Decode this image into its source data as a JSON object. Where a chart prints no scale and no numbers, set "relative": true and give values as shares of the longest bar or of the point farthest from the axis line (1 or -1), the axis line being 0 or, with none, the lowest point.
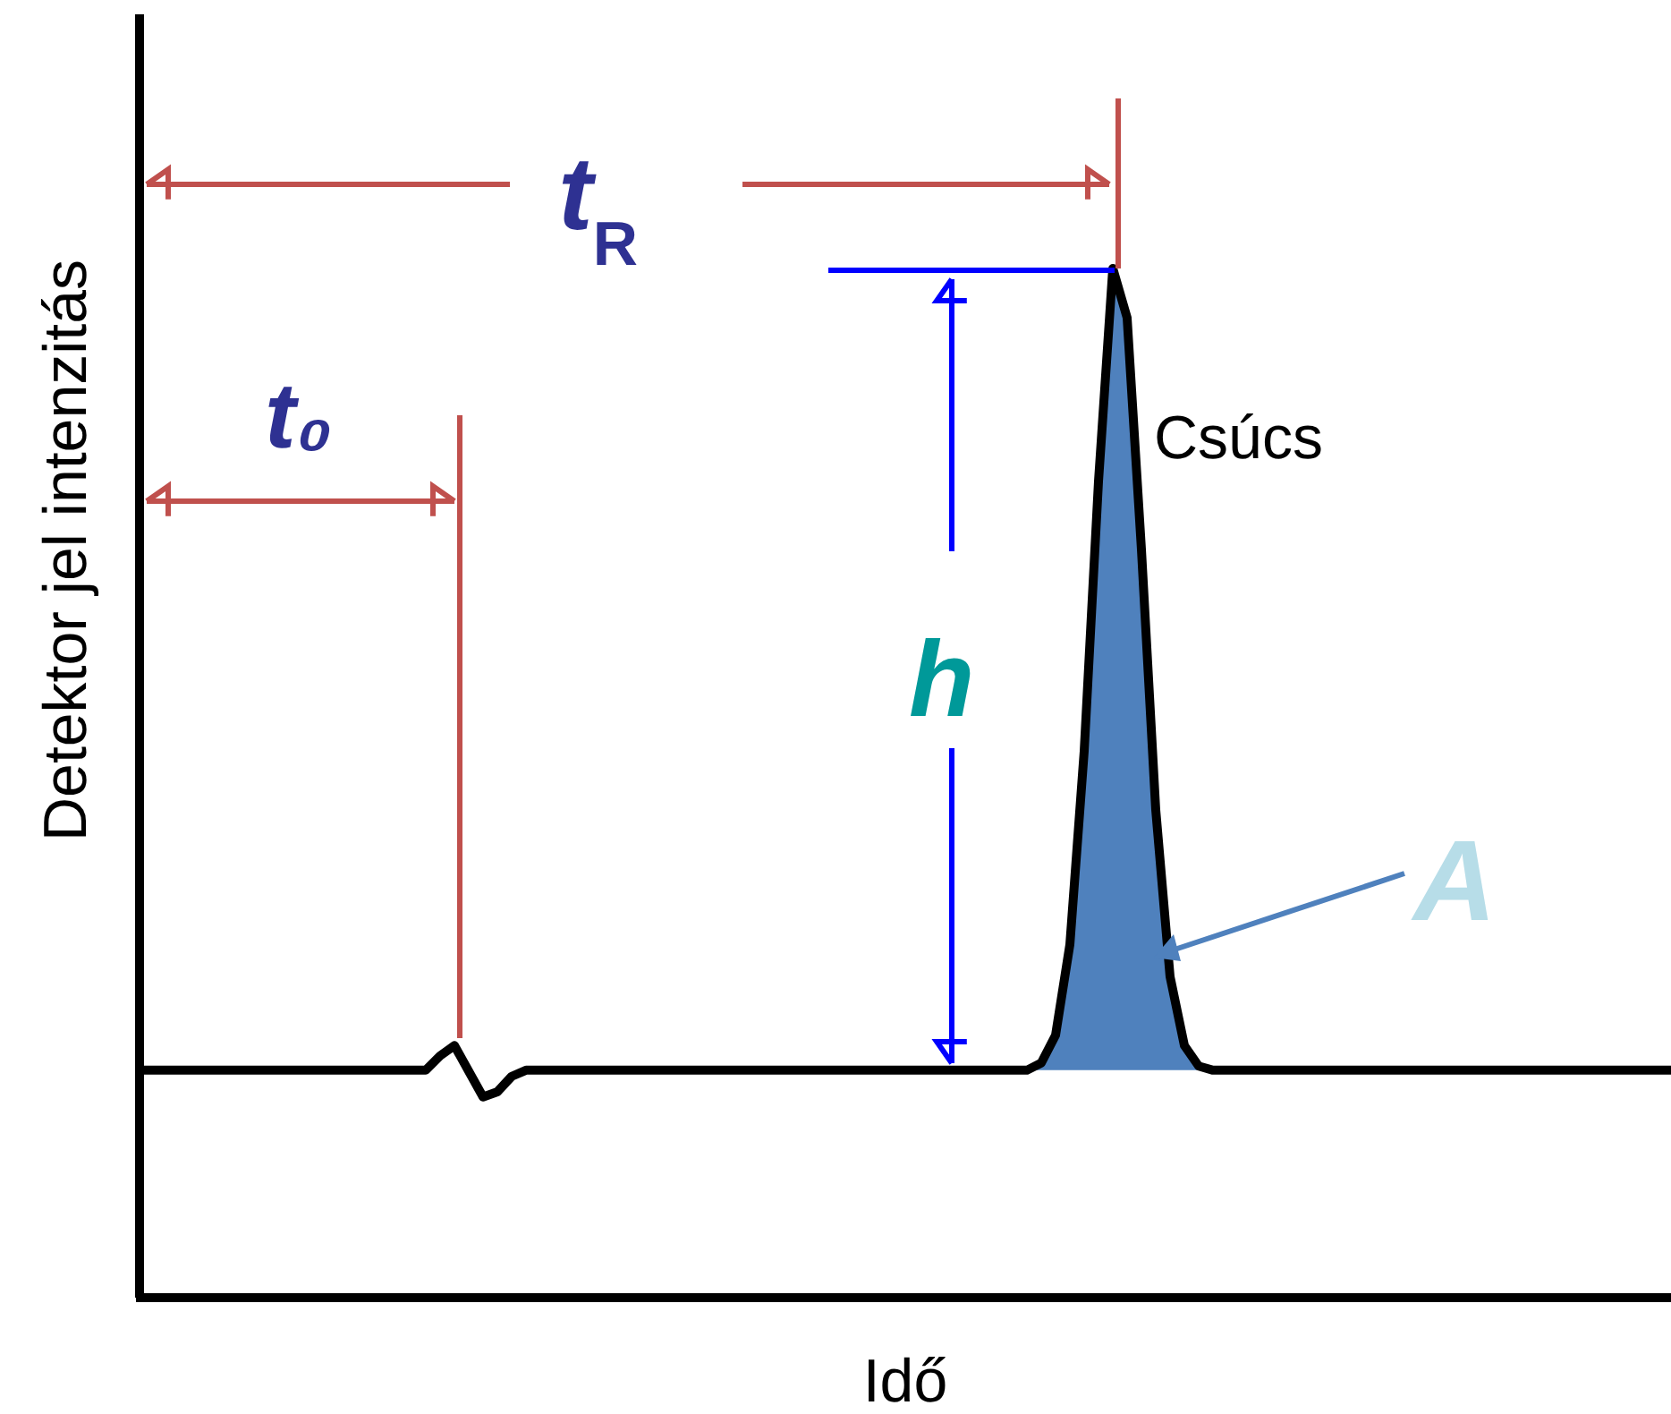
{
  "chart_data": {
    "type": "line",
    "xlabel": "Idő",
    "ylabel": "Detektor jel intenzitás",
    "relative": true,
    "categories": [
      null,
      null,
      null,
      null,
      null,
      null,
      null,
      null,
      null,
      null,
      null,
      null,
      null,
      null,
      null,
      null,
      null,
      null,
      null,
      null,
      null,
      null,
      null,
      null,
      null,
      null,
      null,
      null,
      null,
      null,
      null,
      null,
      null,
      null,
      null,
      null,
      null,
      null,
      null,
      null,
      null,
      null,
      null,
      null,
      null,
      null,
      null,
      null,
      null,
      null,
      null,
      null,
      null,
      null,
      null,
      null,
      null,
      null,
      null,
      null,
      null,
      null,
      null,
      null,
      null,
      null,
      null,
      null,
      null,
      null,
      null,
      null,
      null,
      null,
      null,
      null,
      null,
      null,
      null,
      null,
      null,
      null,
      null,
      null,
      null,
      null,
      null,
      null,
      null,
      null,
      null,
      null,
      null,
      null,
      null,
      null,
      null,
      null,
      null,
      null,
      null,
      null,
      null,
      null,
      null,
      null,
      null,
      null
    ],
    "series": [
      {
        "color": "#000000",
        "values": [
          0.221,
          0.221,
          0.221,
          0.221,
          0.221,
          0.221,
          0.221,
          0.221,
          0.221,
          0.221,
          0.221,
          0.221,
          0.221,
          0.221,
          0.221,
          0.221,
          0.221,
          0.221,
          0.221,
          0.221,
          0.221,
          0.235,
          0.245,
          0.22,
          0.195,
          0.2,
          0.215,
          0.221,
          0.221,
          0.221,
          0.221,
          0.221,
          0.221,
          0.221,
          0.221,
          0.221,
          0.221,
          0.221,
          0.221,
          0.221,
          0.221,
          0.221,
          0.221,
          0.221,
          0.221,
          0.221,
          0.221,
          0.221,
          0.221,
          0.221,
          0.221,
          0.221,
          0.221,
          0.221,
          0.221,
          0.221,
          0.221,
          0.221,
          0.221,
          0.221,
          0.221,
          0.221,
          0.221,
          0.228,
          0.255,
          0.343,
          0.531,
          0.793,
          1,
          0.952,
          0.727,
          0.474,
          0.312,
          0.245,
          0.225,
          0.221,
          0.221,
          0.221,
          0.221,
          0.221,
          0.221,
          0.221,
          0.221,
          0.221,
          0.221,
          0.221,
          0.221,
          0.221,
          0.221,
          0.221,
          0.221,
          0.221,
          0.221,
          0.221,
          0.221,
          0.221,
          0.221,
          0.221,
          0.221,
          0.221,
          0.221,
          0.221,
          0.221,
          0.221,
          0.221,
          0.221,
          0.221,
          0.221
        ]
      },
      {
        "type": "area",
        "color": "#4f81bd",
        "values": [
          null,
          null,
          null,
          null,
          null,
          null,
          null,
          null,
          null,
          null,
          null,
          null,
          null,
          null,
          null,
          null,
          null,
          null,
          null,
          null,
          null,
          null,
          null,
          null,
          null,
          null,
          null,
          null,
          null,
          null,
          null,
          null,
          null,
          null,
          null,
          null,
          null,
          null,
          null,
          null,
          null,
          null,
          null,
          null,
          null,
          null,
          null,
          null,
          null,
          null,
          null,
          null,
          null,
          null,
          null,
          null,
          null,
          null,
          null,
          null,
          null,
          null,
          0.221,
          0.228,
          0.255,
          0.343,
          0.531,
          0.793,
          1,
          0.952,
          0.727,
          0.474,
          0.312,
          0.245,
          0.225,
          0.221,
          null,
          null,
          null,
          null,
          null,
          null,
          null,
          null,
          null,
          null,
          null,
          null,
          null,
          null,
          null,
          null,
          null,
          null,
          null,
          null,
          null,
          null,
          null,
          null,
          null,
          null,
          null,
          null,
          null,
          null,
          null,
          null
        ]
      }
    ],
    "annotations": [
      "t$_{R}$",
      "t₀",
      "h",
      "Csúcs",
      "A"
    ]
  }
}
